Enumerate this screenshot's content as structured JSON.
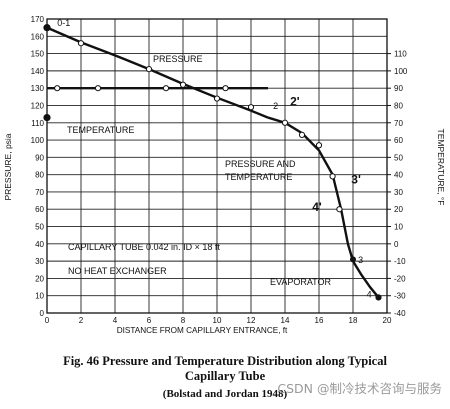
{
  "chart_data": {
    "type": "line",
    "x_axis": {
      "label": "DISTANCE FROM CAPILLARY ENTRANCE, ft",
      "range": [
        0,
        20
      ],
      "ticks": [
        0,
        2,
        4,
        6,
        8,
        10,
        12,
        14,
        16,
        18,
        20
      ]
    },
    "y_left": {
      "label": "PRESSURE, psia",
      "range": [
        0,
        170
      ],
      "ticks": [
        0,
        10,
        20,
        30,
        40,
        50,
        60,
        70,
        80,
        90,
        100,
        110,
        120,
        130,
        140,
        150,
        160,
        170
      ]
    },
    "y_right": {
      "label": "TEMPERATURE, °F",
      "range": [
        -40,
        120
      ],
      "ticks": [
        -40,
        -30,
        -20,
        -10,
        0,
        10,
        20,
        30,
        40,
        50,
        60,
        70,
        80,
        90,
        100,
        110
      ]
    },
    "grid": true,
    "series": [
      {
        "name": "PRESSURE",
        "axis": "left",
        "line": [
          [
            0,
            165
          ],
          [
            2,
            156.5
          ],
          [
            4,
            149
          ],
          [
            6,
            141
          ],
          [
            8,
            132.5
          ],
          [
            10,
            124.5
          ],
          [
            12,
            117
          ],
          [
            13,
            113
          ]
        ],
        "markers": [
          [
            2,
            156
          ],
          [
            6,
            141
          ],
          [
            8,
            132
          ],
          [
            10,
            124
          ],
          [
            12,
            119
          ]
        ]
      },
      {
        "name": "TEMPERATURE",
        "axis": "right",
        "line": [
          [
            0,
            90
          ],
          [
            13,
            90
          ]
        ],
        "markers": [
          [
            0.6,
            90
          ],
          [
            3,
            90
          ],
          [
            7,
            90
          ],
          [
            10.5,
            90
          ]
        ]
      },
      {
        "name": "PRESSURE AND TEMPERATURE",
        "axis": "left",
        "line": [
          [
            13,
            113
          ],
          [
            14,
            110
          ],
          [
            15,
            104
          ],
          [
            16,
            94
          ],
          [
            16.8,
            80
          ],
          [
            17.3,
            60
          ],
          [
            17.7,
            40
          ],
          [
            18,
            30
          ],
          [
            18.5,
            22
          ],
          [
            19,
            15
          ],
          [
            19.5,
            9
          ]
        ],
        "markers": [
          [
            14,
            110
          ],
          [
            15,
            103
          ],
          [
            16,
            97
          ],
          [
            16.8,
            79
          ],
          [
            17.2,
            60
          ],
          [
            19.5,
            9
          ]
        ]
      }
    ],
    "annotations": [
      {
        "text": "0-1",
        "x": 0.6,
        "y": 166
      },
      {
        "text": "2",
        "x": 13.3,
        "y": 118
      },
      {
        "text": "2'",
        "x": 14.3,
        "y": 120
      },
      {
        "text": "3",
        "x": 18.3,
        "y": 29
      },
      {
        "text": "3'",
        "x": 17.9,
        "y": 75
      },
      {
        "text": "4",
        "x": 18.8,
        "y": 9
      },
      {
        "text": "4'",
        "x": 15.6,
        "y": 59
      }
    ],
    "text_labels": {
      "pressure": "PRESSURE",
      "temperature": "TEMPERATURE",
      "pt_line1": "PRESSURE AND",
      "pt_line2": "TEMPERATURE",
      "capillary": "CAPILLARY TUBE 0.042 in. ID × 18 ft",
      "no_hx": "NO HEAT EXCHANGER",
      "evaporator": "EVAPORATOR"
    }
  },
  "caption": {
    "line1": "Fig. 46    Pressure and Temperature Distribution along Typical",
    "line2": "Capillary Tube",
    "line3": "(Bolstad and Jordan 1948)"
  },
  "watermark": "CSDN @制冷技术咨询与服务"
}
